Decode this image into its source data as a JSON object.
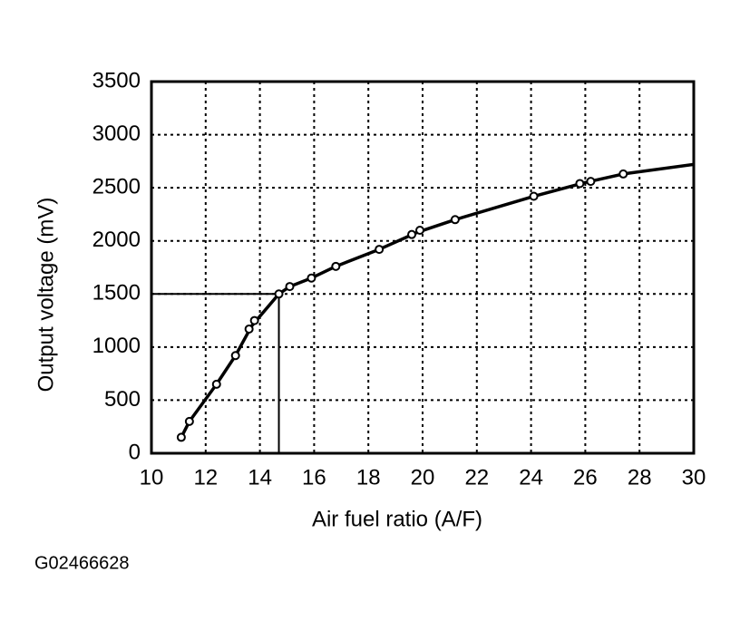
{
  "chart_data": {
    "type": "line",
    "x_label": "Air fuel ratio (A/F)",
    "y_label": "Output voltage (mV)",
    "figure_id": "G02466628",
    "xlim": [
      10,
      30
    ],
    "xticks": [
      10,
      12,
      14,
      16,
      18,
      20,
      22,
      24,
      26,
      28,
      30
    ],
    "ylim": [
      0,
      3500
    ],
    "yticks": [
      0,
      500,
      1000,
      1500,
      2000,
      2500,
      3000,
      3500
    ],
    "grid": true,
    "color": "#000000",
    "reference": {
      "x": 14.7,
      "y": 1500
    },
    "series": [
      {
        "line": true,
        "markers": false,
        "x": [
          11.1,
          11.4,
          12.4,
          13.1,
          13.7,
          14.7,
          15.1,
          15.9,
          16.8,
          18.4,
          19.8,
          21.2,
          24.1,
          26.0,
          27.4,
          30
        ],
        "values": [
          150,
          300,
          650,
          920,
          1200,
          1500,
          1570,
          1650,
          1760,
          1920,
          2080,
          2200,
          2420,
          2550,
          2630,
          2720
        ]
      },
      {
        "line": false,
        "markers": true,
        "x": [
          11.1,
          11.4,
          12.4,
          13.1,
          13.6,
          13.8,
          14.7,
          15.1,
          15.9,
          16.8,
          18.4,
          19.6,
          19.9,
          21.2,
          24.1,
          25.8,
          26.2,
          27.4
        ],
        "values": [
          150,
          300,
          650,
          920,
          1170,
          1250,
          1500,
          1570,
          1650,
          1760,
          1920,
          2060,
          2100,
          2200,
          2420,
          2540,
          2560,
          2630
        ]
      }
    ]
  }
}
